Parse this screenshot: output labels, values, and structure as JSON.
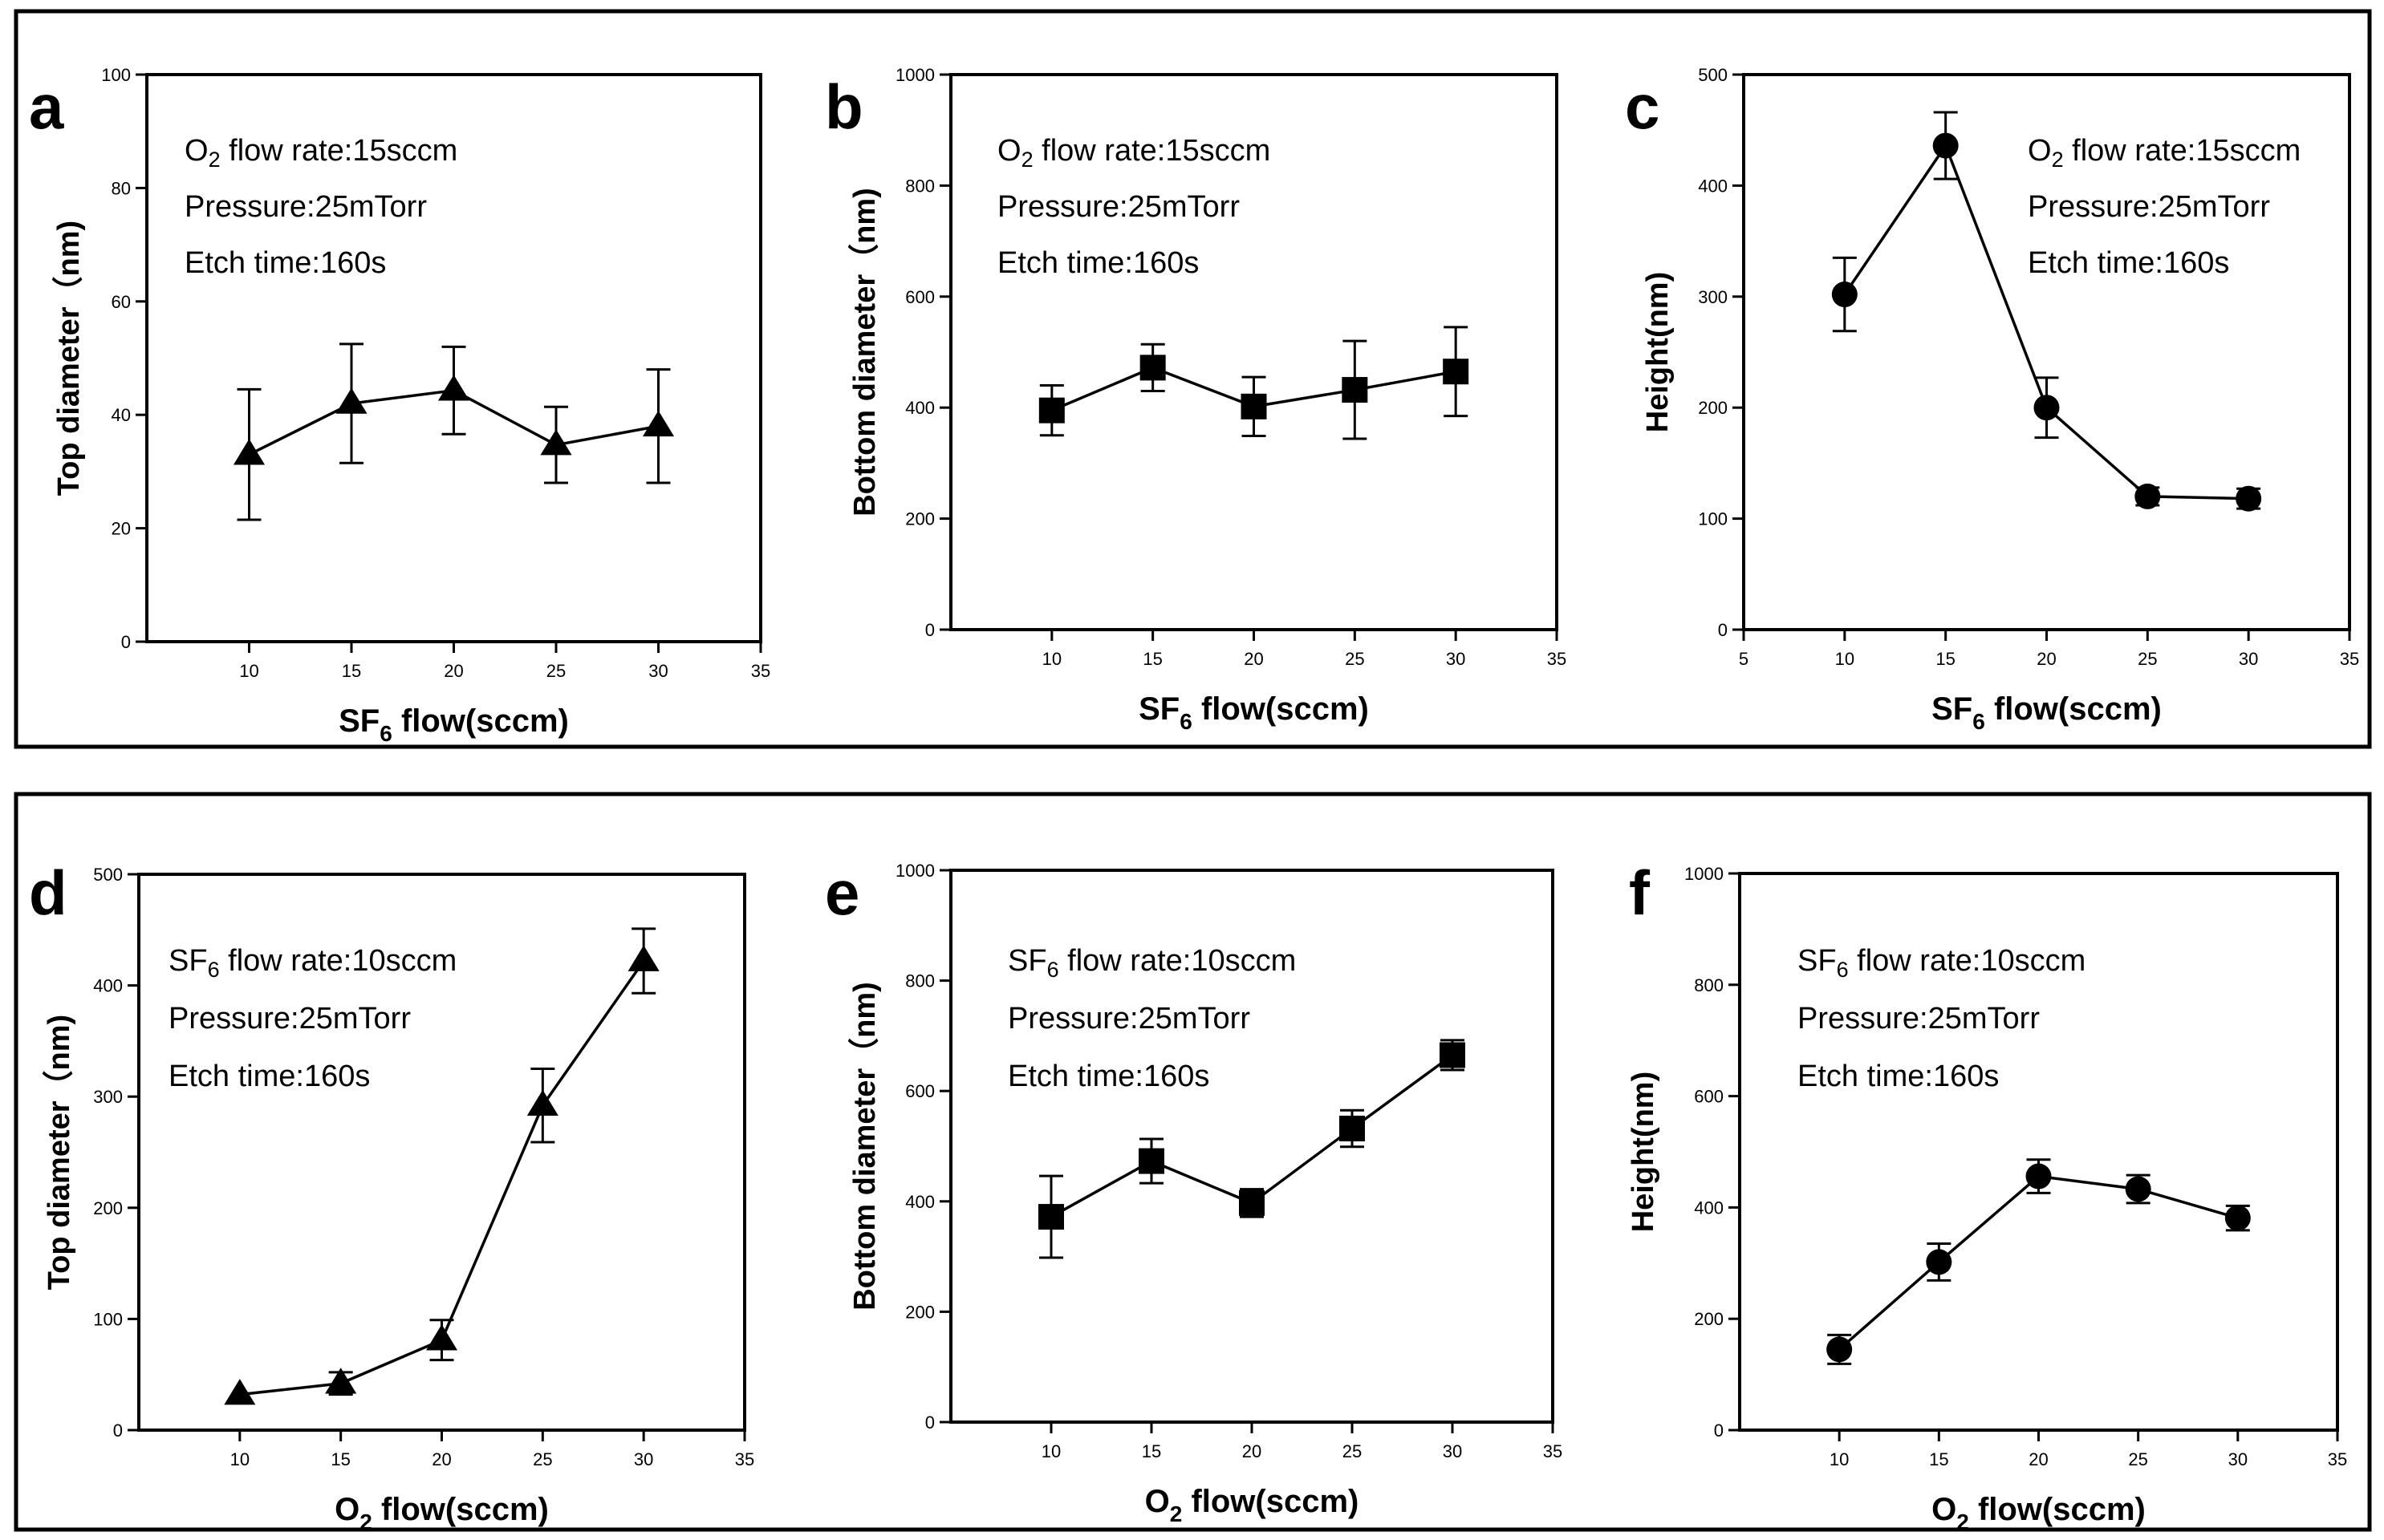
{
  "colors": {
    "ink": "#000000",
    "background": "#ffffff"
  },
  "groups": [
    {
      "name": "sf6-series-group"
    },
    {
      "name": "o2-series-group"
    }
  ],
  "chart_data": [
    {
      "panel": "a",
      "type": "line",
      "marker": "triangle",
      "xlabel": "SF",
      "xlabel_sub": "6",
      "xlabel_rest": " flow(sccm)",
      "ylabel": "Top diameter（nm)",
      "xlim": [
        5,
        35
      ],
      "ylim": [
        0,
        100
      ],
      "xticks": [
        10,
        15,
        20,
        25,
        30,
        35
      ],
      "yticks": [
        0,
        20,
        40,
        60,
        80,
        100
      ],
      "x": [
        10,
        15,
        20,
        25,
        30
      ],
      "values": [
        33,
        42,
        44.3,
        34.7,
        38
      ],
      "errors": [
        11.5,
        10.5,
        7.7,
        6.7,
        10
      ],
      "annotations": [
        {
          "pre": "O",
          "sub": "2",
          "post": " flow rate:15sccm"
        },
        {
          "pre": "Pressure:25mTorr",
          "sub": "",
          "post": ""
        },
        {
          "pre": "Etch time:160s",
          "sub": "",
          "post": ""
        }
      ]
    },
    {
      "panel": "b",
      "type": "line",
      "marker": "square",
      "xlabel": "SF",
      "xlabel_sub": "6",
      "xlabel_rest": " flow(sccm)",
      "ylabel": "Bottom diameter（nm)",
      "xlim": [
        5,
        35
      ],
      "ylim": [
        0,
        1000
      ],
      "xticks": [
        10,
        15,
        20,
        25,
        30,
        35
      ],
      "yticks": [
        0,
        200,
        400,
        600,
        800,
        1000
      ],
      "x": [
        10,
        15,
        20,
        25,
        30
      ],
      "values": [
        395,
        472,
        402,
        432,
        465
      ],
      "errors": [
        45,
        42,
        53,
        88,
        80
      ],
      "annotations": [
        {
          "pre": "O",
          "sub": "2",
          "post": " flow rate:15sccm"
        },
        {
          "pre": "Pressure:25mTorr",
          "sub": "",
          "post": ""
        },
        {
          "pre": "Etch time:160s",
          "sub": "",
          "post": ""
        }
      ]
    },
    {
      "panel": "c",
      "type": "line",
      "marker": "circle",
      "xlabel": "SF",
      "xlabel_sub": "6",
      "xlabel_rest": " flow(sccm)",
      "ylabel": "Height(nm)",
      "xlim": [
        5,
        35
      ],
      "ylim": [
        0,
        500
      ],
      "xticks": [
        5,
        10,
        15,
        20,
        25,
        30,
        35
      ],
      "yticks": [
        0,
        100,
        200,
        300,
        400,
        500
      ],
      "x": [
        10,
        15,
        20,
        25,
        30
      ],
      "values": [
        302,
        436,
        200,
        120,
        118
      ],
      "errors": [
        33,
        30,
        27,
        8,
        9
      ],
      "annotations": [
        {
          "pre": "O",
          "sub": "2",
          "post": " flow rate:15sccm"
        },
        {
          "pre": "Pressure:25mTorr",
          "sub": "",
          "post": ""
        },
        {
          "pre": "Etch time:160s",
          "sub": "",
          "post": ""
        }
      ]
    },
    {
      "panel": "d",
      "type": "line",
      "marker": "triangle",
      "xlabel": "O",
      "xlabel_sub": "2",
      "xlabel_rest": " flow(sccm)",
      "ylabel": "Top diameter（nm)",
      "xlim": [
        5,
        35
      ],
      "ylim": [
        0,
        500
      ],
      "xticks": [
        10,
        15,
        20,
        25,
        30,
        35
      ],
      "yticks": [
        0,
        100,
        200,
        300,
        400,
        500
      ],
      "x": [
        10,
        15,
        20,
        25,
        30
      ],
      "values": [
        32,
        42,
        81,
        292,
        422
      ],
      "errors": [
        0,
        10,
        18,
        33,
        29
      ],
      "annotations": [
        {
          "pre": "SF",
          "sub": "6",
          "post": " flow rate:10sccm"
        },
        {
          "pre": "Pressure:25mTorr",
          "sub": "",
          "post": ""
        },
        {
          "pre": "Etch time:160s",
          "sub": "",
          "post": ""
        }
      ]
    },
    {
      "panel": "e",
      "type": "line",
      "marker": "square",
      "xlabel": "O",
      "xlabel_sub": "2",
      "xlabel_rest": " flow(sccm)",
      "ylabel": "Bottom diameter（nm)",
      "xlim": [
        5,
        35
      ],
      "ylim": [
        0,
        1000
      ],
      "xticks": [
        10,
        15,
        20,
        25,
        30,
        35
      ],
      "yticks": [
        0,
        200,
        400,
        600,
        800,
        1000
      ],
      "x": [
        10,
        15,
        20,
        25,
        30
      ],
      "values": [
        372,
        473,
        397,
        532,
        665
      ],
      "errors": [
        74,
        40,
        25,
        33,
        27
      ],
      "annotations": [
        {
          "pre": "SF",
          "sub": "6",
          "post": " flow rate:10sccm"
        },
        {
          "pre": "Pressure:25mTorr",
          "sub": "",
          "post": ""
        },
        {
          "pre": "Etch time:160s",
          "sub": "",
          "post": ""
        }
      ]
    },
    {
      "panel": "f",
      "type": "line",
      "marker": "circle",
      "xlabel": "O",
      "xlabel_sub": "2",
      "xlabel_rest": " flow(sccm)",
      "ylabel": "Height(nm)",
      "xlim": [
        5,
        35
      ],
      "ylim": [
        0,
        1000
      ],
      "xticks": [
        10,
        15,
        20,
        25,
        30,
        35
      ],
      "yticks": [
        0,
        200,
        400,
        600,
        800,
        1000
      ],
      "x": [
        10,
        15,
        20,
        25,
        30
      ],
      "values": [
        145,
        302,
        456,
        433,
        381
      ],
      "errors": [
        26,
        33,
        30,
        25,
        22
      ],
      "annotations": [
        {
          "pre": "SF",
          "sub": "6",
          "post": " flow rate:10sccm"
        },
        {
          "pre": "Pressure:25mTorr",
          "sub": "",
          "post": ""
        },
        {
          "pre": "Etch time:160s",
          "sub": "",
          "post": ""
        }
      ]
    }
  ]
}
